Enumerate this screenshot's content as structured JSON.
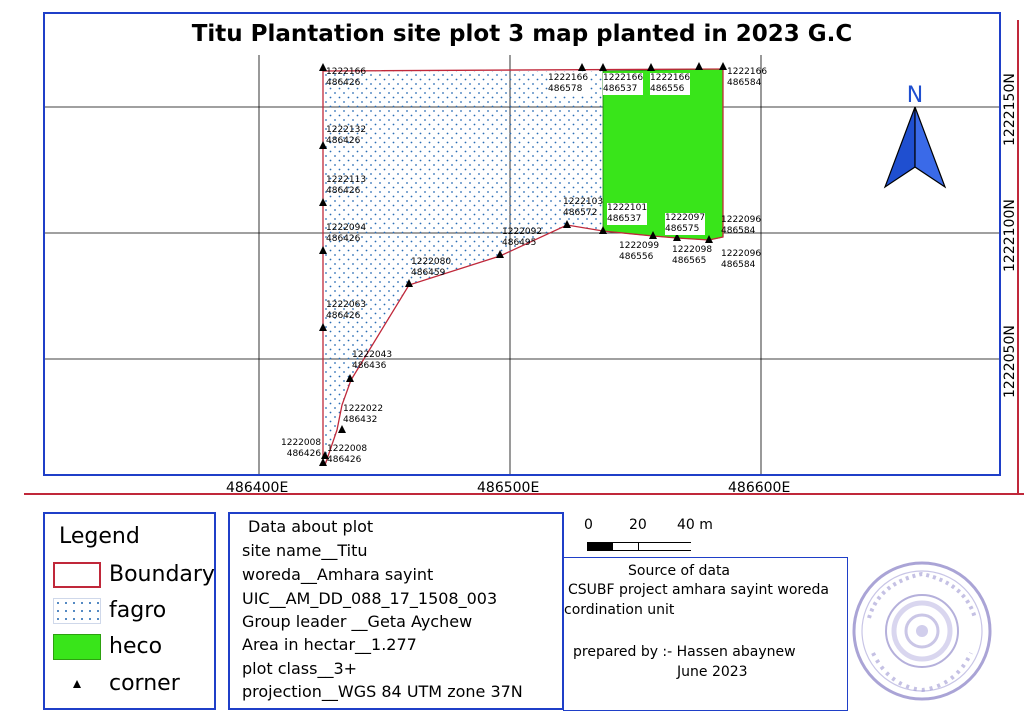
{
  "title": "Titu Plantation site plot 3 map planted in 2023 G.C",
  "map": {
    "x_ticks": [
      "486400E",
      "486500E",
      "486600E"
    ],
    "y_ticks": [
      "1222150N",
      "1222100N",
      "1222050N"
    ],
    "north_label": "N",
    "colors": {
      "boundary": "#c0283a",
      "heco": "#39e51a",
      "fagro_dots": "#2a6db4",
      "frame": "#1f3fc8",
      "grid": "#000000"
    },
    "boundary_points": [
      {
        "n": "1222166",
        "e": "486426"
      },
      {
        "n": "1222166",
        "e": "486578"
      },
      {
        "n": "1222166",
        "e": "486537"
      },
      {
        "n": "1222166",
        "e": "486556"
      },
      {
        "n": "1222166",
        "e": "486584"
      },
      {
        "n": "1222132",
        "e": "486426"
      },
      {
        "n": "1222113",
        "e": "486426"
      },
      {
        "n": "1222103",
        "e": "486572"
      },
      {
        "n": "1222101",
        "e": "486537"
      },
      {
        "n": "1222097",
        "e": "486575"
      },
      {
        "n": "1222096",
        "e": "486584"
      },
      {
        "n": "1222094",
        "e": "486426"
      },
      {
        "n": "1222092",
        "e": "486495"
      },
      {
        "n": "1222099",
        "e": "486556"
      },
      {
        "n": "1222098",
        "e": "486565"
      },
      {
        "n": "1222096",
        "e": "486584"
      },
      {
        "n": "1222080",
        "e": "486459"
      },
      {
        "n": "1222063",
        "e": "486426"
      },
      {
        "n": "1222043",
        "e": "486436"
      },
      {
        "n": "1222022",
        "e": "486432"
      },
      {
        "n": "1222008",
        "e": "486426"
      },
      {
        "n": "1222008",
        "e": "486426"
      }
    ]
  },
  "legend": {
    "title": "Legend",
    "items": [
      {
        "label": "Boundary"
      },
      {
        "label": "fagro"
      },
      {
        "label": "heco"
      },
      {
        "label": "corner"
      }
    ]
  },
  "plot_info": {
    "heading": "Data about plot",
    "site_name": "site name__Titu",
    "woreda": "woreda__Amhara sayint",
    "uic": "UIC__AM_DD_088_17_1508_003",
    "group_leader": "Group leader __Geta Aychew",
    "area": "Area in hectar__1.277",
    "plot_class": "plot class__3+",
    "projection": "projection__WGS 84 UTM zone 37N"
  },
  "scale": {
    "labels": [
      "0",
      "20",
      "40 m"
    ]
  },
  "source": {
    "heading": "Source of data",
    "line1": "CSUBF project amhara sayint woreda",
    "line2": "cordination unit",
    "prepared": "prepared by :- Hassen abaynew",
    "date": "June 2023"
  }
}
